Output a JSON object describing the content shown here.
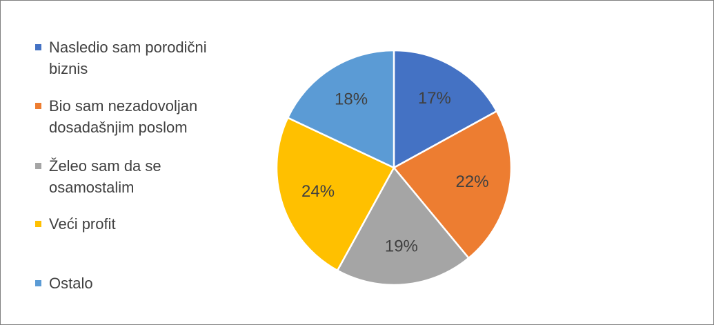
{
  "chart_data": {
    "type": "pie",
    "categories": [
      "Nasledio sam porodični biznis",
      "Bio sam nezadovoljan dosadašnjim poslom",
      "Želeo sam da se osamostalim",
      "Veći profit",
      "Ostalo"
    ],
    "values": [
      17,
      22,
      19,
      24,
      18
    ],
    "value_labels": [
      "17%",
      "22%",
      "19%",
      "24%",
      "18%"
    ],
    "colors": [
      "#4472c4",
      "#ed7d31",
      "#a5a5a5",
      "#ffc000",
      "#5b9bd5"
    ],
    "legend": "left"
  }
}
